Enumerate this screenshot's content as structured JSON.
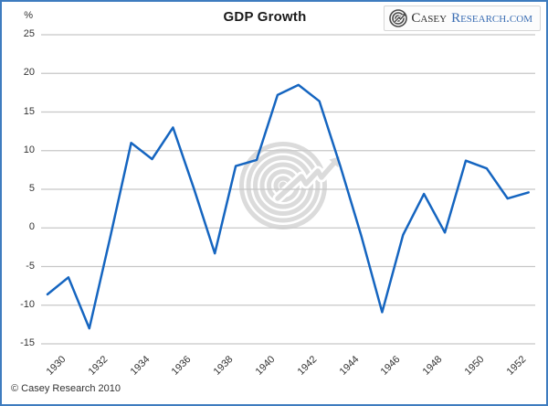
{
  "chart": {
    "unit_label": "%"
  },
  "logo": {
    "casey": "Casey",
    "research": "Research.com"
  },
  "footer": {
    "copyright": "© Casey Research 2010"
  },
  "colors": {
    "line": "#1565C0",
    "frame_border": "#3E7CBF",
    "gridline": "#C7C7C7",
    "watermark": "#DBDBDB",
    "text": "#333333",
    "title": "#1A1A1A",
    "logo_research_blue": "#3A6DB3",
    "logo_casey_dark": "#2E2E2E"
  },
  "chart_data": {
    "type": "line",
    "title": "GDP Growth",
    "ylabel": "%",
    "xlabel": "",
    "series": [
      {
        "name": "GDP Growth",
        "x": [
          1930,
          1931,
          1932,
          1933,
          1934,
          1935,
          1936,
          1937,
          1938,
          1939,
          1940,
          1941,
          1942,
          1943,
          1944,
          1945,
          1946,
          1947,
          1948,
          1949,
          1950,
          1951,
          1952,
          1953
        ],
        "values": [
          -8.6,
          -6.4,
          -13.0,
          -1.2,
          11.0,
          8.9,
          13.0,
          5.1,
          -3.3,
          8.0,
          8.8,
          17.2,
          18.5,
          16.4,
          8.0,
          -1.0,
          -10.9,
          -0.9,
          4.4,
          -0.6,
          8.7,
          7.7,
          3.8,
          4.6
        ]
      }
    ],
    "xticks": [
      1930,
      1932,
      1934,
      1936,
      1938,
      1940,
      1942,
      1944,
      1946,
      1948,
      1950,
      1952
    ],
    "yticks": [
      25,
      20,
      15,
      10,
      5,
      0,
      -5,
      -10,
      -15
    ],
    "ylim": [
      -15,
      25
    ],
    "xlim": [
      1930,
      1953
    ],
    "grid": true,
    "legend_position": "none",
    "watermark": "casey-research-rings-growth-arrow"
  }
}
